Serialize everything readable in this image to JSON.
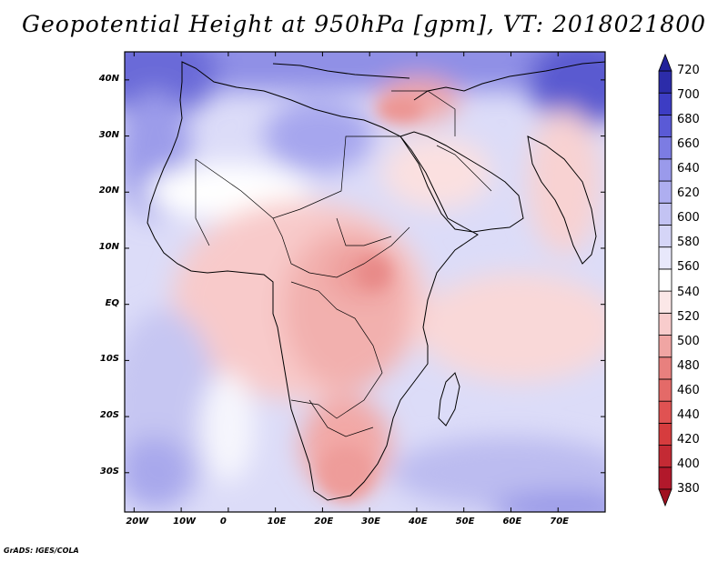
{
  "title": "Geopotential Height at 950hPa [gpm], VT: 2018021800",
  "map": {
    "variable": "Geopotential Height",
    "level": "950hPa",
    "units": "gpm",
    "valid_time": "2018021800",
    "lat_labels": [
      "40N",
      "30N",
      "20N",
      "10N",
      "EQ",
      "10S",
      "20S",
      "30S"
    ],
    "lon_labels": [
      "20W",
      "10W",
      "0",
      "10E",
      "20E",
      "30E",
      "40E",
      "50E",
      "60E",
      "70E"
    ],
    "lat_range": [
      -37,
      45
    ],
    "lon_range": [
      -22,
      80
    ]
  },
  "colorbar": {
    "levels": [
      380,
      400,
      420,
      440,
      460,
      480,
      500,
      520,
      540,
      560,
      580,
      600,
      620,
      640,
      660,
      680,
      700,
      720
    ],
    "labels": [
      "720",
      "700",
      "680",
      "660",
      "640",
      "620",
      "600",
      "580",
      "560",
      "540",
      "520",
      "500",
      "480",
      "460",
      "440",
      "420",
      "400",
      "380"
    ],
    "colors": [
      "#b2182b",
      "#c42a34",
      "#d63c3e",
      "#e05252",
      "#e46a68",
      "#e8807e",
      "#f0a5a3",
      "#f8cccc",
      "#fbe7e7",
      "#ffffff",
      "#e8e8fb",
      "#d5d5f7",
      "#c3c3f3",
      "#aeaef0",
      "#9a9aeb",
      "#7c7ce3",
      "#5a5ad6",
      "#3d3dc4",
      "#2c2ca9"
    ]
  },
  "credit": "GrADS: IGES/COLA"
}
